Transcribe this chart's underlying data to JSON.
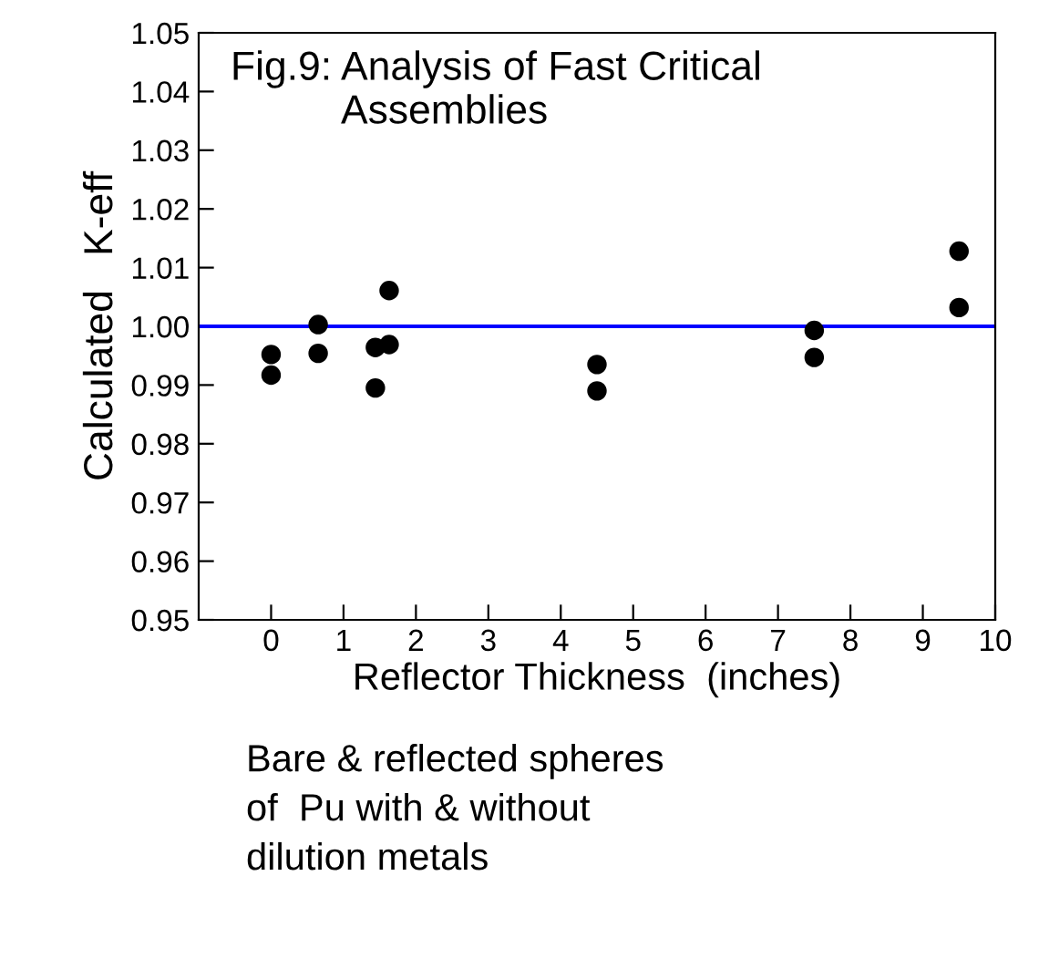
{
  "chart_data": {
    "type": "scatter",
    "title": "Fig.9: Analysis of Fast Critical\n          Assemblies",
    "xlabel": "Reflector Thickness  (inches)",
    "ylabel": "Calculated   K-eff",
    "series": [
      {
        "color": "#000000",
        "x": [
          0,
          0,
          0.65,
          0.65,
          1.44,
          1.44,
          1.63,
          1.63,
          4.5,
          4.5,
          7.5,
          7.5,
          9.5,
          9.5
        ],
        "values": [
          0.9952,
          0.9917,
          1.0003,
          0.9954,
          0.9964,
          0.9895,
          1.0061,
          0.9969,
          0.9935,
          0.989,
          0.9993,
          0.9947,
          1.0128,
          1.0032
        ]
      }
    ],
    "marker": "circle",
    "xlim": [
      -1,
      10
    ],
    "xticks": [
      0,
      1,
      2,
      3,
      4,
      5,
      6,
      7,
      8,
      9,
      10
    ],
    "ylim": [
      0.95,
      1.05
    ],
    "yticks": [
      0.95,
      0.96,
      0.97,
      0.98,
      0.99,
      {
        "value": 1.0,
        "label": "1.00"
      },
      1.01,
      1.02,
      1.03,
      1.04,
      1.05
    ],
    "ref_lines": [
      {
        "axis": "y",
        "value": 1.0,
        "color": "#0000ff"
      }
    ],
    "annotations": [
      "Bare & reflected spheres\nof  Pu with & without\ndilution metals"
    ],
    "grid": false,
    "legend": false
  }
}
